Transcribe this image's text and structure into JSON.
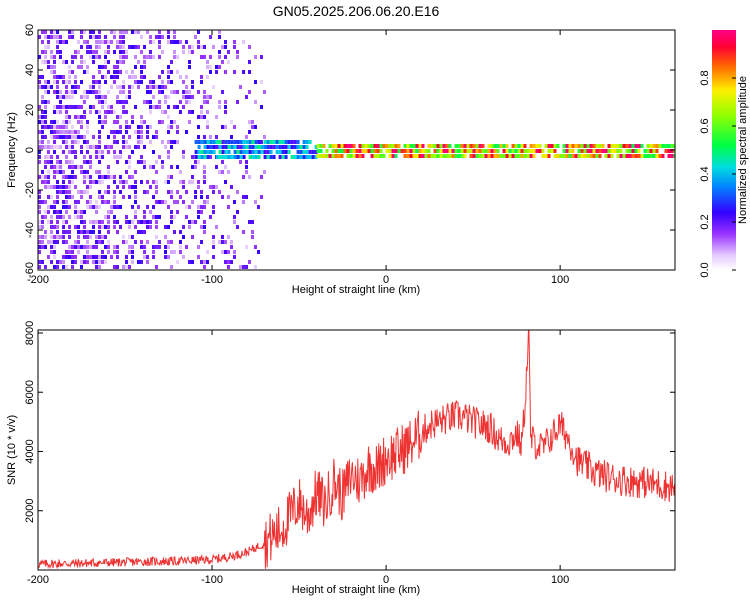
{
  "page": {
    "title": "GN05.2025.206.06.20.E16"
  },
  "chart_data": [
    {
      "type": "heatmap",
      "title": "GN05.2025.206.06.20.E16",
      "xlabel": "Height of straight line (km)",
      "ylabel": "Frequency (Hz)",
      "xlim": [
        -200,
        166
      ],
      "ylim": [
        -60,
        60
      ],
      "xticks": [
        -200,
        -100,
        0,
        100
      ],
      "yticks": [
        -60,
        -40,
        -20,
        0,
        20,
        40,
        60
      ],
      "grid": false,
      "colorbar": {
        "label": "Normalized spectral amplitude",
        "range": [
          0,
          1
        ],
        "ticks": [
          0.0,
          0.2,
          0.4,
          0.6,
          0.8
        ],
        "colormap": "white-purple-blue-cyan-green-yellow-red-magenta"
      },
      "regions": [
        {
          "x_range": [
            -200,
            -70
          ],
          "freq_range": [
            -60,
            60
          ],
          "amplitude_range": [
            0.05,
            0.25
          ],
          "description_values": "scattered noise"
        },
        {
          "x_range": [
            -110,
            -40
          ],
          "freq_center": 0,
          "freq_halfwidth": 5,
          "amplitude_range": [
            0.2,
            0.5
          ]
        },
        {
          "x_range": [
            -40,
            166
          ],
          "freq_center": 0,
          "freq_halfwidth": 3,
          "amplitude_range": [
            0.5,
            1.0
          ]
        }
      ]
    },
    {
      "type": "line",
      "xlabel": "Height of straight line (km)",
      "ylabel": "SNR (10 * v/v)",
      "xlim": [
        -200,
        166
      ],
      "ylim": [
        0,
        8100
      ],
      "xticks": [
        -200,
        -100,
        0,
        100
      ],
      "yticks": [
        2000,
        4000,
        6000,
        8000
      ],
      "grid": false,
      "series": [
        {
          "color": "#ee3333",
          "x": [
            -200,
            -180,
            -160,
            -140,
            -120,
            -100,
            -90,
            -80,
            -70,
            -60,
            -50,
            -45,
            -40,
            -35,
            -30,
            -25,
            -20,
            -15,
            -10,
            -5,
            0,
            5,
            10,
            15,
            20,
            25,
            30,
            35,
            40,
            45,
            50,
            55,
            60,
            65,
            70,
            75,
            78,
            80,
            82,
            83,
            85,
            90,
            95,
            100,
            105,
            110,
            120,
            130,
            140,
            150,
            160,
            166
          ],
          "y": [
            200,
            220,
            250,
            280,
            300,
            350,
            450,
            600,
            900,
            1400,
            2300,
            1800,
            2600,
            2200,
            3000,
            2500,
            3200,
            3000,
            3500,
            3400,
            3800,
            3900,
            4100,
            4300,
            4600,
            4900,
            5000,
            5100,
            5200,
            5150,
            5000,
            4900,
            4800,
            4400,
            4300,
            4600,
            4200,
            5800,
            8100,
            4500,
            4300,
            4100,
            4500,
            4900,
            4400,
            3700,
            3300,
            3100,
            3000,
            2950,
            2850,
            2800
          ]
        }
      ]
    }
  ]
}
